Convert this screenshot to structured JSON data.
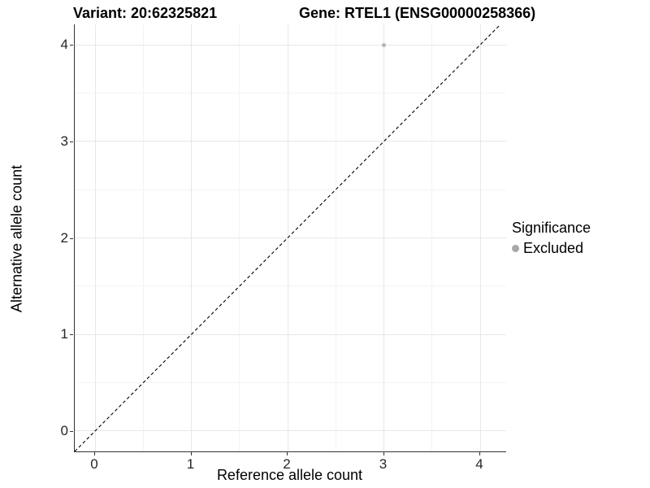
{
  "titles": {
    "variant": "Variant: 20:62325821",
    "gene": "Gene: RTEL1 (ENSG00000258366)"
  },
  "chart_data": {
    "type": "scatter",
    "xlabel": "Reference allele count",
    "ylabel": "Alternative allele count",
    "xlim": [
      -0.211,
      4.27
    ],
    "ylim": [
      -0.211,
      4.211
    ],
    "xticks": [
      0,
      1,
      2,
      3,
      4
    ],
    "yticks": [
      0,
      1,
      2,
      3,
      4
    ],
    "xticks_minor": [
      0.5,
      1.5,
      2.5,
      3.5
    ],
    "yticks_minor": [
      0.5,
      1.5,
      2.5,
      3.5
    ],
    "grid": true,
    "points": [
      {
        "x": 3,
        "y": 4,
        "series": "Excluded"
      }
    ],
    "identity_line": {
      "slope": 1,
      "intercept": 0,
      "style": "dashed",
      "color": "#000000"
    },
    "legend": {
      "title": "Significance",
      "position": "right",
      "items": [
        {
          "label": "Excluded",
          "color": "#a8a8a8"
        }
      ]
    }
  },
  "colors": {
    "background": "#ffffff",
    "axis_line": "#333333",
    "grid_major": "#e7e7e7",
    "grid_minor": "#f3f3f3",
    "point_fill": "#b5b5b5",
    "text": "#000000",
    "tick_text": "#262626"
  }
}
